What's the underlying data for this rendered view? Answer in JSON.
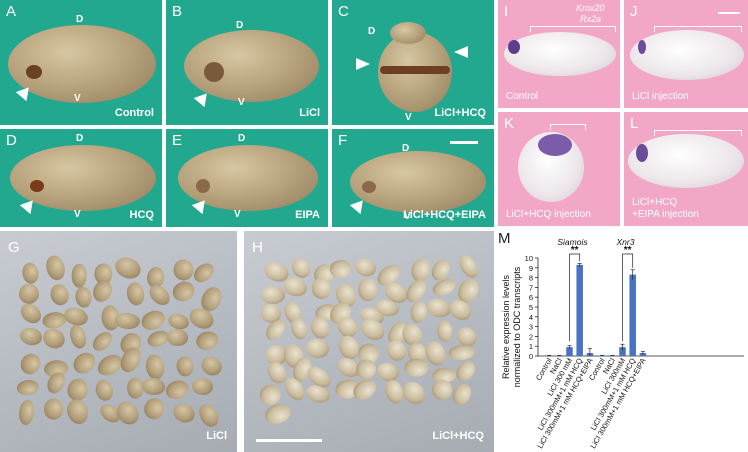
{
  "panels": {
    "A": {
      "letter": "A",
      "label": "Control",
      "d": "D",
      "v": "V"
    },
    "B": {
      "letter": "B",
      "label": "LiCl",
      "d": "D",
      "v": "V"
    },
    "C": {
      "letter": "C",
      "label": "LiCl+HCQ",
      "d": "D",
      "v": "V"
    },
    "D": {
      "letter": "D",
      "label": "HCQ",
      "d": "D",
      "v": "V"
    },
    "E": {
      "letter": "E",
      "label": "EIPA",
      "d": "D",
      "v": "V"
    },
    "F": {
      "letter": "F",
      "label": "LiCl+HCQ+EIPA",
      "d": "D",
      "v": "V"
    },
    "G": {
      "letter": "G",
      "label": "LiCl"
    },
    "H": {
      "letter": "H",
      "label": "LiCl+HCQ"
    },
    "I": {
      "letter": "I",
      "label": "Control",
      "gene1": "Krox20",
      "gene2": "Rx2a"
    },
    "J": {
      "letter": "J",
      "label": "LiCl injection"
    },
    "K": {
      "letter": "K",
      "label": "LiCl+HCQ injection"
    },
    "L": {
      "letter": "L",
      "label_line1": "LiCl+HCQ",
      "label_line2": "+EIPA injection"
    },
    "M": {
      "letter": "M"
    }
  },
  "chart_data": {
    "type": "bar",
    "ylabel": "Relative expression levels normalized to ODC transcripts",
    "ylim": [
      0,
      10
    ],
    "yticks": [
      0,
      1,
      2,
      3,
      4,
      5,
      6,
      7,
      8,
      9,
      10
    ],
    "groups": [
      {
        "name": "Siamois",
        "categories": [
          "Control",
          "NaCl",
          "LiCl 300 mM",
          "LiCl 300mM+1 mM HCQ",
          "LiCl 300mM+1 mM HCQ+EIPA"
        ],
        "values": [
          0.05,
          0.05,
          0.9,
          9.3,
          0.3
        ],
        "errors": [
          0.02,
          0.02,
          0.15,
          0.15,
          0.45
        ],
        "significance": "**"
      },
      {
        "name": "Xnr3",
        "categories": [
          "Control",
          "NaCl",
          "LiCl 300mM",
          "LiCl 300mM+1 mM HCQ",
          "LiCl 300mM+1 mM HCQ+EIPA"
        ],
        "values": [
          0.05,
          0.05,
          0.9,
          8.3,
          0.3
        ],
        "errors": [
          0.02,
          0.02,
          0.3,
          0.5,
          0.15
        ],
        "significance": "**"
      }
    ],
    "bar_color": "#4a72c4"
  }
}
